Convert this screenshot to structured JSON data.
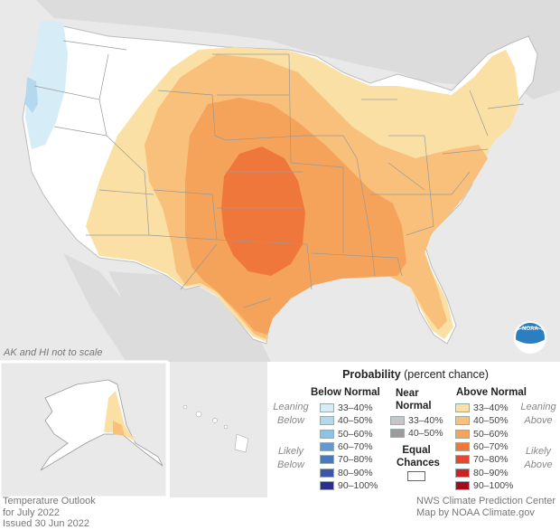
{
  "inset_note": "AK and HI not to scale",
  "legend": {
    "title_bold": "Probability",
    "title_rest": " (percent chance)",
    "below_head": "Below Normal",
    "near_head_1": "Near",
    "near_head_2": "Normal",
    "above_head": "Above Normal",
    "leaning_below": [
      "Leaning",
      "Below"
    ],
    "likely_below": [
      "Likely",
      "Below"
    ],
    "leaning_above": [
      "Leaning",
      "Above"
    ],
    "likely_above": [
      "Likely",
      "Above"
    ],
    "equal_1": "Equal",
    "equal_2": "Chances",
    "below_items": [
      {
        "label": "33–40%",
        "color": "#d6ecf6"
      },
      {
        "label": "40–50%",
        "color": "#b4d9ee"
      },
      {
        "label": "50–60%",
        "color": "#8ec2e4"
      },
      {
        "label": "60–70%",
        "color": "#6399cf"
      },
      {
        "label": "70–80%",
        "color": "#4a78bd"
      },
      {
        "label": "80–90%",
        "color": "#3d57a8"
      },
      {
        "label": "90–100%",
        "color": "#2b2e8c"
      }
    ],
    "near_items": [
      {
        "label": "33–40%",
        "color": "#c6c6c6"
      },
      {
        "label": "40–50%",
        "color": "#9c9c9c"
      }
    ],
    "above_items": [
      {
        "label": "33–40%",
        "color": "#fbe0a6"
      },
      {
        "label": "40–50%",
        "color": "#f8c07a"
      },
      {
        "label": "50–60%",
        "color": "#f5a35a"
      },
      {
        "label": "60–70%",
        "color": "#f0773c"
      },
      {
        "label": "70–80%",
        "color": "#e4482f"
      },
      {
        "label": "80–90%",
        "color": "#c82325"
      },
      {
        "label": "90–100%",
        "color": "#a10d1f"
      }
    ]
  },
  "footer_left": [
    "Temperature Outlook",
    "for July 2022",
    "Issued 30 Jun 2022"
  ],
  "footer_right": [
    "NWS Climate Prediction Center",
    "Map by NOAA Climate.gov"
  ],
  "logo_text": "NOAA"
}
